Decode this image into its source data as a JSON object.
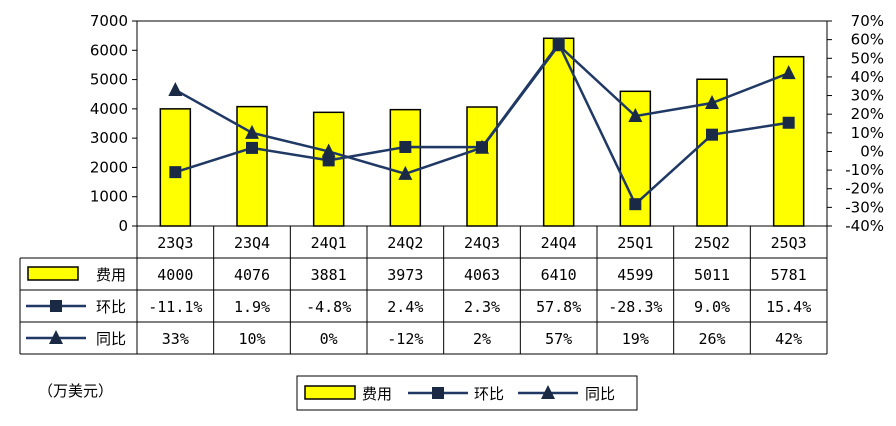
{
  "chart_data": {
    "type": "bar",
    "unit_label": "（万美元）",
    "categories": [
      "23Q3",
      "23Q4",
      "24Q1",
      "24Q2",
      "24Q3",
      "24Q4",
      "25Q1",
      "25Q2",
      "25Q3"
    ],
    "ylim": [
      0,
      7000
    ],
    "yticks": [
      "7000",
      "6000",
      "5000",
      "4000",
      "3000",
      "2000",
      "1000",
      "0"
    ],
    "y2lim": [
      -40,
      70
    ],
    "y2ticks": [
      "70%",
      "60%",
      "50%",
      "40%",
      "30%",
      "20%",
      "10%",
      "0%",
      "-10%",
      "-20%",
      "-30%",
      "-40%"
    ],
    "grid": false,
    "legend": "bottom",
    "series": [
      {
        "name": "费用",
        "type": "bar",
        "axis": "left",
        "values": [
          4000,
          4076,
          3881,
          3973,
          4063,
          6410,
          4599,
          5011,
          5781
        ],
        "labels": [
          "4000",
          "4076",
          "3881",
          "3973",
          "4063",
          "6410",
          "4599",
          "5011",
          "5781"
        ],
        "color": "#ffff00",
        "marker": "bar"
      },
      {
        "name": "环比",
        "type": "line",
        "axis": "right",
        "values": [
          -11.1,
          1.9,
          -4.8,
          2.4,
          2.3,
          57.8,
          -28.3,
          9.0,
          15.4
        ],
        "labels": [
          "-11.1%",
          "1.9%",
          "-4.8%",
          "2.4%",
          "2.3%",
          "57.8%",
          "-28.3%",
          "9.0%",
          "15.4%"
        ],
        "color": "#1f3864",
        "marker": "square"
      },
      {
        "name": "同比",
        "type": "line",
        "axis": "right",
        "values": [
          33,
          10,
          0,
          -12,
          2,
          57,
          19,
          26,
          42
        ],
        "labels": [
          "33%",
          "10%",
          "0%",
          "-12%",
          "2%",
          "57%",
          "19%",
          "26%",
          "42%"
        ],
        "color": "#1f3864",
        "marker": "triangle"
      }
    ]
  }
}
